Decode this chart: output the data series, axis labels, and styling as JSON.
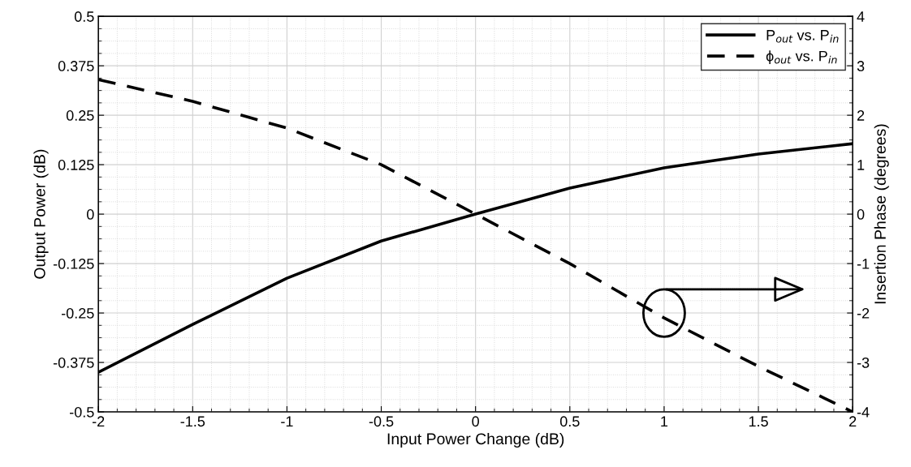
{
  "chart_data": {
    "type": "line",
    "xlabel": "Input Power Change (dB)",
    "ylabel": "Output Power (dB)",
    "y2label": "Insertion Phase (degrees)",
    "x": [
      -2,
      -1.5,
      -1,
      -0.5,
      0,
      0.5,
      1,
      1.5,
      2
    ],
    "series": [
      {
        "name": "P$_{out}$ vs. P$_{in}$",
        "color": "#000000",
        "line_style": "solid",
        "values": [
          -0.4,
          -0.279,
          -0.162,
          -0.068,
          0,
          0.066,
          0.117,
          0.152,
          0.178
        ]
      },
      {
        "name": "ϕ$_{out}$ vs. P$_{in}$",
        "color": "#000000",
        "line_style": "dashed",
        "axis": "y2",
        "values": [
          2.72,
          2.28,
          1.74,
          1.0,
          0,
          -1.0,
          -2.1,
          -3.08,
          -4
        ]
      }
    ],
    "xlim": [
      -2,
      2
    ],
    "xticks": [
      -2,
      -1.5,
      -1,
      -0.5,
      0,
      0.5,
      1,
      1.5,
      2
    ],
    "ylim": [
      -0.5,
      0.5
    ],
    "yticks": [
      -0.5,
      -0.375,
      -0.25,
      -0.125,
      0,
      0.125,
      0.25,
      0.375,
      0.5
    ],
    "y2lim": [
      -4,
      4
    ],
    "y2ticks": [
      -4,
      -3,
      -2,
      -1,
      0,
      1,
      2,
      3,
      4
    ],
    "grid": true,
    "legend": "top right",
    "marker": "none"
  }
}
